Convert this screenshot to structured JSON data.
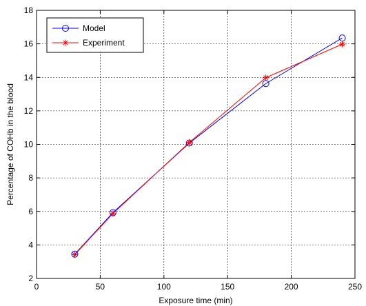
{
  "chart_data": {
    "type": "line",
    "xlabel": "Exposure time (min)",
    "ylabel": "Percentage of COHb in the blood",
    "xlim": [
      0,
      250
    ],
    "ylim": [
      2,
      18
    ],
    "xticks": [
      0,
      50,
      100,
      150,
      200,
      250
    ],
    "yticks": [
      2,
      4,
      6,
      8,
      10,
      12,
      14,
      16,
      18
    ],
    "grid": true,
    "legend_position": "top-left",
    "series": [
      {
        "name": "Model",
        "color": "#0000ff",
        "marker": "circle",
        "x": [
          30,
          60,
          120,
          180,
          240
        ],
        "y": [
          3.45,
          5.93,
          10.08,
          13.63,
          16.35
        ]
      },
      {
        "name": "Experiment",
        "color": "#ff0000",
        "marker": "asterisk",
        "x": [
          30,
          60,
          120,
          180,
          240
        ],
        "y": [
          3.42,
          5.87,
          10.12,
          13.98,
          15.98
        ]
      }
    ]
  }
}
